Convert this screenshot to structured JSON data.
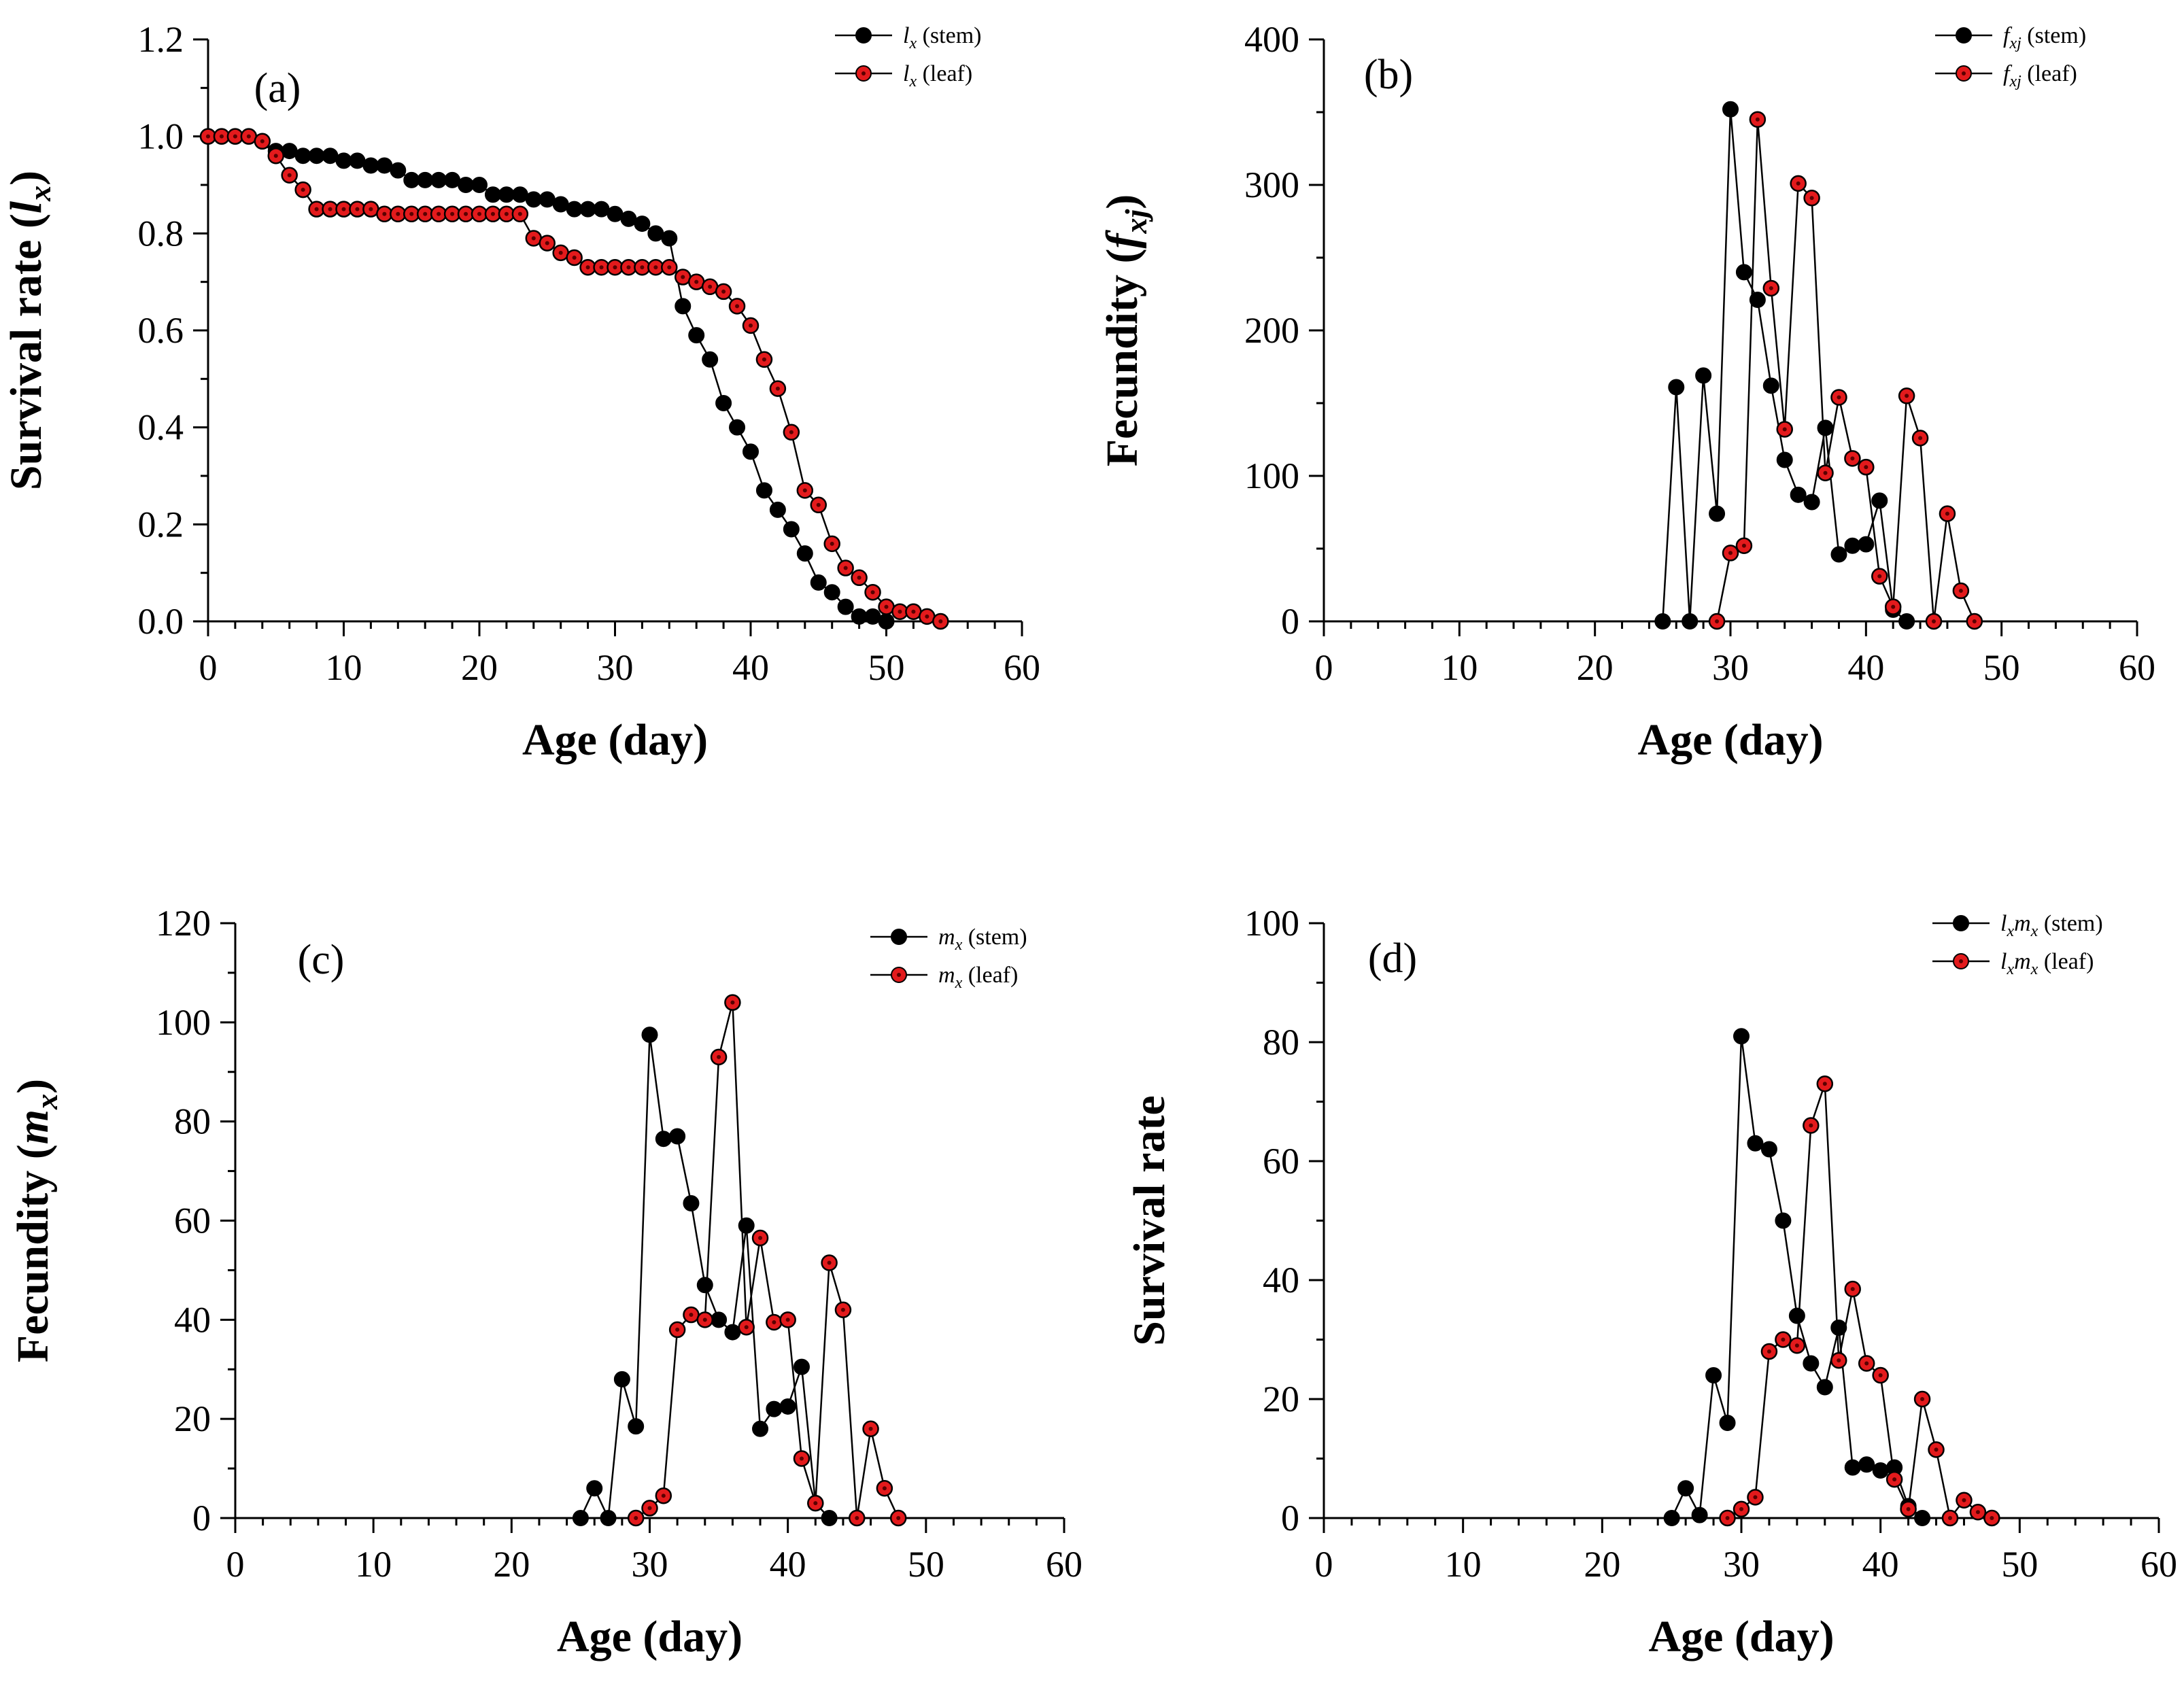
{
  "figure": {
    "background": "#ffffff",
    "panels": 4
  },
  "colors": {
    "stem": "#000000",
    "leaf": "#e31a1c",
    "leaf_center": "#5a0000",
    "axis": "#000000"
  },
  "chart_data": [
    {
      "id": "a",
      "type": "line",
      "panel_label": "(a)",
      "xlabel": "Age (day)",
      "ylabel": "Survival rate (lx)",
      "ylabel_parts": {
        "pre": "Survival rate (",
        "var": "l",
        "sub": "x",
        "post": ")"
      },
      "xlim": [
        0,
        60
      ],
      "ylim": [
        0,
        1.2
      ],
      "xticks": [
        "0",
        "10",
        "20",
        "30",
        "40",
        "50",
        "60"
      ],
      "yticks": [
        "0.0",
        "0.2",
        "0.4",
        "0.6",
        "0.8",
        "1.0",
        "1.2"
      ],
      "legend_position": "top-right",
      "series": [
        {
          "name": "lx (stem)",
          "legend": {
            "var": "l",
            "sub": "x",
            "rest": "(stem)"
          },
          "style": "stem",
          "x": [
            0,
            1,
            2,
            3,
            4,
            5,
            6,
            7,
            8,
            9,
            10,
            11,
            12,
            13,
            14,
            15,
            16,
            17,
            18,
            19,
            20,
            21,
            22,
            23,
            24,
            25,
            26,
            27,
            28,
            29,
            30,
            31,
            32,
            33,
            34,
            35,
            36,
            37,
            38,
            39,
            40,
            41,
            42,
            43,
            44,
            45,
            46,
            47,
            48,
            49,
            50
          ],
          "y": [
            1.0,
            1.0,
            1.0,
            1.0,
            0.99,
            0.97,
            0.97,
            0.96,
            0.96,
            0.96,
            0.95,
            0.95,
            0.94,
            0.94,
            0.93,
            0.91,
            0.91,
            0.91,
            0.91,
            0.9,
            0.9,
            0.88,
            0.88,
            0.88,
            0.87,
            0.87,
            0.86,
            0.85,
            0.85,
            0.85,
            0.84,
            0.83,
            0.82,
            0.8,
            0.79,
            0.65,
            0.59,
            0.54,
            0.45,
            0.4,
            0.35,
            0.27,
            0.23,
            0.19,
            0.14,
            0.08,
            0.06,
            0.03,
            0.01,
            0.01,
            0.0
          ]
        },
        {
          "name": "lx (leaf)",
          "legend": {
            "var": "l",
            "sub": "x",
            "rest": "(leaf)"
          },
          "style": "leaf",
          "x": [
            0,
            1,
            2,
            3,
            4,
            5,
            6,
            7,
            8,
            9,
            10,
            11,
            12,
            13,
            14,
            15,
            16,
            17,
            18,
            19,
            20,
            21,
            22,
            23,
            24,
            25,
            26,
            27,
            28,
            29,
            30,
            31,
            32,
            33,
            34,
            35,
            36,
            37,
            38,
            39,
            40,
            41,
            42,
            43,
            44,
            45,
            46,
            47,
            48,
            49,
            50,
            51,
            52,
            53,
            54
          ],
          "y": [
            1.0,
            1.0,
            1.0,
            1.0,
            0.99,
            0.96,
            0.92,
            0.89,
            0.85,
            0.85,
            0.85,
            0.85,
            0.85,
            0.84,
            0.84,
            0.84,
            0.84,
            0.84,
            0.84,
            0.84,
            0.84,
            0.84,
            0.84,
            0.84,
            0.79,
            0.78,
            0.76,
            0.75,
            0.73,
            0.73,
            0.73,
            0.73,
            0.73,
            0.73,
            0.73,
            0.71,
            0.7,
            0.69,
            0.68,
            0.65,
            0.61,
            0.54,
            0.48,
            0.39,
            0.27,
            0.24,
            0.16,
            0.11,
            0.09,
            0.06,
            0.03,
            0.02,
            0.02,
            0.01,
            0.0
          ]
        }
      ]
    },
    {
      "id": "b",
      "type": "line",
      "panel_label": "(b)",
      "xlabel": "Age (day)",
      "ylabel": "Fecundity (fxj)",
      "ylabel_parts": {
        "pre": "Fecundity (",
        "var": "f",
        "sub": "xj",
        "post": ")"
      },
      "xlim": [
        0,
        60
      ],
      "ylim": [
        0,
        400
      ],
      "xticks": [
        "0",
        "10",
        "20",
        "30",
        "40",
        "50",
        "60"
      ],
      "yticks": [
        "0",
        "100",
        "200",
        "300",
        "400"
      ],
      "legend_position": "top-right",
      "series": [
        {
          "name": "fxj (stem)",
          "legend": {
            "var": "f",
            "sub": "xj",
            "rest": "(stem)"
          },
          "style": "stem",
          "x": [
            25,
            26,
            27,
            28,
            29,
            30,
            31,
            32,
            33,
            34,
            35,
            36,
            37,
            38,
            39,
            40,
            41,
            42,
            43
          ],
          "y": [
            0,
            161,
            0,
            169,
            74,
            352,
            240,
            221,
            162,
            111,
            87,
            82,
            133,
            46,
            52,
            53,
            83,
            8,
            0
          ]
        },
        {
          "name": "fxj (leaf)",
          "legend": {
            "var": "f",
            "sub": "xj",
            "rest": "(leaf)"
          },
          "style": "leaf",
          "x": [
            29,
            30,
            31,
            32,
            33,
            34,
            35,
            36,
            37,
            38,
            39,
            40,
            41,
            42,
            43,
            44,
            45,
            46,
            47,
            48
          ],
          "y": [
            0,
            47,
            52,
            345,
            229,
            132,
            301,
            291,
            102,
            154,
            112,
            106,
            31,
            10,
            155,
            126,
            0,
            74,
            21,
            0
          ]
        }
      ]
    },
    {
      "id": "c",
      "type": "line",
      "panel_label": "(c)",
      "xlabel": "Age (day)",
      "ylabel": "Fecundity (mx)",
      "ylabel_parts": {
        "pre": "Fecundity (",
        "var": "m",
        "sub": "x",
        "post": ")"
      },
      "xlim": [
        0,
        60
      ],
      "ylim": [
        0,
        120
      ],
      "xticks": [
        "0",
        "10",
        "20",
        "30",
        "40",
        "50",
        "60"
      ],
      "yticks": [
        "0",
        "20",
        "40",
        "60",
        "80",
        "100",
        "120"
      ],
      "legend_position": "top-right",
      "series": [
        {
          "name": "mx (stem)",
          "legend": {
            "var": "m",
            "sub": "x",
            "rest": "(stem)"
          },
          "style": "stem",
          "x": [
            25,
            26,
            27,
            28,
            29,
            30,
            31,
            32,
            33,
            34,
            35,
            36,
            37,
            38,
            39,
            40,
            41,
            42,
            43
          ],
          "y": [
            0,
            6,
            0,
            28,
            18.5,
            97.5,
            76.5,
            77,
            63.5,
            47,
            40,
            37.5,
            59,
            18,
            22,
            22.5,
            30.5,
            3,
            0
          ]
        },
        {
          "name": "mx (leaf)",
          "legend": {
            "var": "m",
            "sub": "x",
            "rest": "(leaf)"
          },
          "style": "leaf",
          "x": [
            29,
            30,
            31,
            32,
            33,
            34,
            35,
            36,
            37,
            38,
            39,
            40,
            41,
            42,
            43,
            44,
            45,
            46,
            47,
            48
          ],
          "y": [
            0,
            2,
            4.5,
            38,
            41,
            40,
            93,
            104,
            38.5,
            56.5,
            39.5,
            40,
            12,
            3,
            51.5,
            42,
            0,
            18,
            6,
            0
          ]
        }
      ]
    },
    {
      "id": "d",
      "type": "line",
      "panel_label": "(d)",
      "xlabel": "Age (day)",
      "ylabel": "Survival rate",
      "ylabel_parts": {
        "pre": "Survival rate",
        "var": "",
        "sub": "",
        "post": ""
      },
      "xlim": [
        0,
        60
      ],
      "ylim": [
        0,
        100
      ],
      "xticks": [
        "0",
        "10",
        "20",
        "30",
        "40",
        "50",
        "60"
      ],
      "yticks": [
        "0",
        "20",
        "40",
        "60",
        "80",
        "100"
      ],
      "legend_position": "top-right",
      "series": [
        {
          "name": "lxmx (stem)",
          "legend": {
            "var": "l",
            "sub": "x",
            "var2": "m",
            "sub2": "x",
            "rest": "(stem)"
          },
          "style": "stem",
          "x": [
            25,
            26,
            27,
            28,
            29,
            30,
            31,
            32,
            33,
            34,
            35,
            36,
            37,
            38,
            39,
            40,
            41,
            42,
            43
          ],
          "y": [
            0,
            5,
            0.5,
            24,
            16,
            81,
            63,
            62,
            50,
            34,
            26,
            22,
            32,
            8.5,
            9,
            8,
            8.5,
            2,
            0
          ]
        },
        {
          "name": "lxmx (leaf)",
          "legend": {
            "var": "l",
            "sub": "x",
            "var2": "m",
            "sub2": "x",
            "rest": "(leaf)"
          },
          "style": "leaf",
          "x": [
            29,
            30,
            31,
            32,
            33,
            34,
            35,
            36,
            37,
            38,
            39,
            40,
            41,
            42,
            43,
            44,
            45,
            46,
            47,
            48
          ],
          "y": [
            0,
            1.5,
            3.5,
            28,
            30,
            29,
            66,
            73,
            26.5,
            38.5,
            26,
            24,
            6.5,
            1.5,
            20,
            11.5,
            0,
            3,
            1,
            0
          ]
        }
      ]
    }
  ]
}
